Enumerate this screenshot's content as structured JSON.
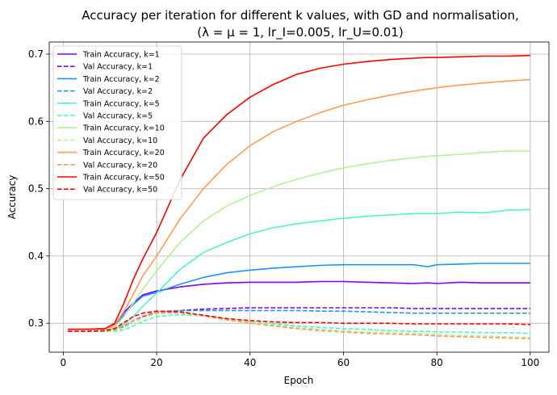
{
  "chart_data": {
    "type": "line",
    "title": "Accuracy per iteration for different k values, with GD and normalisation,",
    "subtitle": "(λ = μ = 1, lr_I=0.005, lr_U=0.01)",
    "xlabel": "Epoch",
    "ylabel": "Accuracy",
    "xlim": [
      -3,
      104
    ],
    "ylim": [
      0.257,
      0.718
    ],
    "xticks": [
      0,
      20,
      40,
      60,
      80,
      100
    ],
    "yticks": [
      0.3,
      0.4,
      0.5,
      0.6,
      0.7
    ],
    "xtick_labels": [
      "0",
      "20",
      "40",
      "60",
      "80",
      "100"
    ],
    "ytick_labels": [
      "0.3",
      "0.4",
      "0.5",
      "0.6",
      "0.7"
    ],
    "grid": true,
    "legend": "upper-left",
    "x": [
      1,
      5,
      9,
      11,
      13,
      15,
      17,
      20,
      25,
      30,
      35,
      40,
      45,
      50,
      55,
      60,
      65,
      70,
      75,
      78,
      80,
      85,
      90,
      95,
      100
    ],
    "series": [
      {
        "name": "Train Accuracy, k=1",
        "color": "#8000ff",
        "dash": false,
        "values": [
          0.291,
          0.291,
          0.292,
          0.298,
          0.316,
          0.33,
          0.342,
          0.348,
          0.354,
          0.358,
          0.36,
          0.361,
          0.361,
          0.361,
          0.362,
          0.362,
          0.361,
          0.36,
          0.359,
          0.36,
          0.359,
          0.361,
          0.36,
          0.36,
          0.36
        ]
      },
      {
        "name": "Val Accuracy, k=1",
        "color": "#8000ff",
        "dash": true,
        "values": [
          0.288,
          0.288,
          0.289,
          0.291,
          0.296,
          0.304,
          0.31,
          0.316,
          0.319,
          0.321,
          0.322,
          0.323,
          0.323,
          0.323,
          0.323,
          0.323,
          0.323,
          0.323,
          0.322,
          0.322,
          0.322,
          0.322,
          0.322,
          0.322,
          0.322
        ]
      },
      {
        "name": "Train Accuracy, k=2",
        "color": "#1996f3",
        "dash": false,
        "values": [
          0.291,
          0.291,
          0.292,
          0.297,
          0.312,
          0.328,
          0.34,
          0.346,
          0.358,
          0.368,
          0.375,
          0.379,
          0.382,
          0.384,
          0.386,
          0.387,
          0.387,
          0.387,
          0.387,
          0.384,
          0.387,
          0.388,
          0.389,
          0.389,
          0.389
        ]
      },
      {
        "name": "Val Accuracy, k=2",
        "color": "#1996f3",
        "dash": true,
        "values": [
          0.288,
          0.288,
          0.289,
          0.29,
          0.295,
          0.304,
          0.311,
          0.317,
          0.319,
          0.319,
          0.319,
          0.319,
          0.319,
          0.319,
          0.318,
          0.318,
          0.317,
          0.316,
          0.315,
          0.315,
          0.315,
          0.315,
          0.315,
          0.315,
          0.315
        ]
      },
      {
        "name": "Train Accuracy, k=5",
        "color": "#4df3ce",
        "dash": false,
        "values": [
          0.291,
          0.291,
          0.291,
          0.292,
          0.298,
          0.31,
          0.325,
          0.345,
          0.38,
          0.405,
          0.42,
          0.433,
          0.442,
          0.448,
          0.452,
          0.456,
          0.459,
          0.461,
          0.463,
          0.463,
          0.463,
          0.465,
          0.464,
          0.468,
          0.469
        ]
      },
      {
        "name": "Val Accuracy, k=5",
        "color": "#4df3ce",
        "dash": true,
        "values": [
          0.288,
          0.288,
          0.288,
          0.288,
          0.29,
          0.296,
          0.303,
          0.31,
          0.313,
          0.311,
          0.307,
          0.302,
          0.299,
          0.296,
          0.294,
          0.292,
          0.291,
          0.289,
          0.288,
          0.288,
          0.287,
          0.287,
          0.286,
          0.286,
          0.285
        ]
      },
      {
        "name": "Val Accuracy, k=10",
        "color": "#b2f396",
        "dash": true,
        "values": [
          0.288,
          0.288,
          0.288,
          0.289,
          0.293,
          0.3,
          0.308,
          0.314,
          0.315,
          0.312,
          0.307,
          0.302,
          0.297,
          0.294,
          0.291,
          0.289,
          0.287,
          0.286,
          0.285,
          0.284,
          0.283,
          0.282,
          0.281,
          0.28,
          0.279
        ]
      },
      {
        "name": "Train Accuracy, k=10",
        "color": "#b2f396",
        "dash": false,
        "values": [
          0.291,
          0.291,
          0.291,
          0.294,
          0.31,
          0.33,
          0.35,
          0.378,
          0.42,
          0.452,
          0.474,
          0.49,
          0.503,
          0.514,
          0.523,
          0.531,
          0.537,
          0.542,
          0.546,
          0.548,
          0.549,
          0.551,
          0.554,
          0.556,
          0.556
        ]
      },
      {
        "name": "Val Accuracy, k=20",
        "color": "#ff9b55",
        "dash": true,
        "values": [
          0.288,
          0.288,
          0.288,
          0.29,
          0.296,
          0.304,
          0.311,
          0.316,
          0.316,
          0.311,
          0.305,
          0.3,
          0.296,
          0.292,
          0.289,
          0.287,
          0.285,
          0.284,
          0.283,
          0.282,
          0.281,
          0.28,
          0.279,
          0.278,
          0.277
        ]
      },
      {
        "name": "Train Accuracy, k=20",
        "color": "#ff9b55",
        "dash": false,
        "values": [
          0.291,
          0.291,
          0.292,
          0.297,
          0.318,
          0.343,
          0.37,
          0.4,
          0.455,
          0.5,
          0.536,
          0.564,
          0.585,
          0.6,
          0.613,
          0.624,
          0.632,
          0.639,
          0.645,
          0.648,
          0.65,
          0.654,
          0.657,
          0.66,
          0.662
        ]
      },
      {
        "name": "Train Accuracy, k=50",
        "color": "#ff0000",
        "dash": false,
        "values": [
          0.291,
          0.291,
          0.292,
          0.3,
          0.33,
          0.365,
          0.395,
          0.435,
          0.513,
          0.575,
          0.61,
          0.636,
          0.655,
          0.67,
          0.679,
          0.685,
          0.689,
          0.692,
          0.694,
          0.695,
          0.695,
          0.696,
          0.697,
          0.697,
          0.698
        ]
      },
      {
        "name": "Val Accuracy, k=50",
        "color": "#ff0000",
        "dash": true,
        "values": [
          0.288,
          0.288,
          0.289,
          0.292,
          0.301,
          0.31,
          0.315,
          0.318,
          0.317,
          0.312,
          0.307,
          0.304,
          0.302,
          0.301,
          0.301,
          0.3,
          0.3,
          0.3,
          0.299,
          0.299,
          0.299,
          0.299,
          0.299,
          0.299,
          0.298
        ]
      }
    ],
    "legend_order": [
      "Train Accuracy, k=1",
      "Val Accuracy, k=1",
      "Train Accuracy, k=2",
      "Val Accuracy, k=2",
      "Train Accuracy, k=5",
      "Val Accuracy, k=5",
      "Train Accuracy, k=10",
      "Val Accuracy, k=10",
      "Train Accuracy, k=20",
      "Val Accuracy, k=20",
      "Train Accuracy, k=50",
      "Val Accuracy, k=50"
    ]
  }
}
